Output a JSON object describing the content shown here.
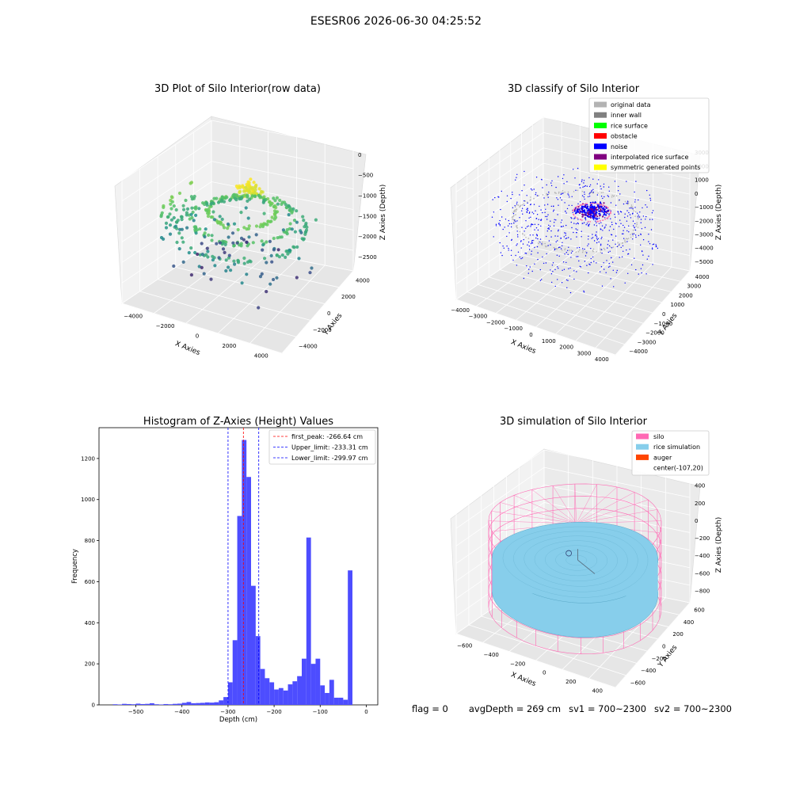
{
  "figure_title": "ESESR06 2026-06-30 04:25:52",
  "status": {
    "flag": "flag = 0",
    "avg_depth": "avgDepth = 269 cm",
    "sv1": "sv1 = 700~2300",
    "sv2": "sv2 = 700~2300"
  },
  "colors": {
    "original_data": "#b3b3b3",
    "inner_wall": "#808080",
    "rice_surface": "#00ff00",
    "obstacle": "#ff0000",
    "noise": "#0000ff",
    "interpolated_rice_surface": "#800080",
    "symmetric_generated_points": "#ffff00",
    "silo": "#ff69b4",
    "rice_simulation": "#87ceeb",
    "auger": "#ff4500",
    "hist_bar": "#4d4dff"
  },
  "chart_data": [
    {
      "type": "scatter",
      "projection": "3d",
      "title": "3D Plot of Silo Interior(row data)",
      "xlabel": "X Axies",
      "ylabel": "Y Axies",
      "zlabel": "Z Axies (Depth)",
      "xticks": [
        "−4000",
        "−2000",
        "0",
        "2000",
        "4000"
      ],
      "yticks": [
        "−4000",
        "−2000",
        "0",
        "2000",
        "4000"
      ],
      "zticks": [
        "0",
        "−500",
        "−1000",
        "−1500",
        "−2000",
        "−2500"
      ],
      "xlim": [
        -4500,
        4500
      ],
      "ylim": [
        -4500,
        4500
      ],
      "zlim": [
        -2800,
        0
      ],
      "colormap": "viridis"
    },
    {
      "type": "scatter",
      "projection": "3d",
      "title": "3D classify of Silo Interior",
      "xlabel": "X Axies",
      "ylabel": "Y Axies",
      "zlabel": "Z Axies (Depth)",
      "xticks": [
        "−4000",
        "−3000",
        "−2000",
        "−1000",
        "0",
        "1000",
        "2000",
        "3000",
        "4000"
      ],
      "yticks": [
        "−4000",
        "−3000",
        "−2000",
        "−1000",
        "0",
        "1000",
        "2000",
        "3000",
        "4000"
      ],
      "zticks": [
        "3000",
        "2000",
        "1000",
        "0",
        "−1000",
        "−2000",
        "−3000",
        "−4000",
        "−5000"
      ],
      "xlim": [
        -4000,
        4000
      ],
      "ylim": [
        -4000,
        4000
      ],
      "zlim": [
        -5000,
        3000
      ],
      "legend_position": "top-right",
      "legend": [
        "original data",
        "inner wall",
        "rice surface",
        "obstacle",
        "noise",
        "interpolated rice surface",
        "symmetric generated points"
      ]
    },
    {
      "type": "bar",
      "title": "Histogram of Z-Axies (Height) Values",
      "xlabel": "Depth (cm)",
      "ylabel": "Frequency",
      "xlim": [
        -580,
        25
      ],
      "ylim": [
        0,
        1350
      ],
      "xticks": [
        -500,
        -400,
        -300,
        -200,
        -100,
        0
      ],
      "yticks": [
        0,
        200,
        400,
        600,
        800,
        1000,
        1200
      ],
      "bin_width": 10,
      "bins": [
        {
          "x": -550,
          "y": 3
        },
        {
          "x": -540,
          "y": 2
        },
        {
          "x": -530,
          "y": 5
        },
        {
          "x": -520,
          "y": 4
        },
        {
          "x": -510,
          "y": 3
        },
        {
          "x": -500,
          "y": 6
        },
        {
          "x": -490,
          "y": 4
        },
        {
          "x": -480,
          "y": 5
        },
        {
          "x": -470,
          "y": 8
        },
        {
          "x": -460,
          "y": 3
        },
        {
          "x": -450,
          "y": 2
        },
        {
          "x": -440,
          "y": 4
        },
        {
          "x": -430,
          "y": 3
        },
        {
          "x": -420,
          "y": 5
        },
        {
          "x": -410,
          "y": 6
        },
        {
          "x": -400,
          "y": 10
        },
        {
          "x": -390,
          "y": 14
        },
        {
          "x": -380,
          "y": 8
        },
        {
          "x": -370,
          "y": 9
        },
        {
          "x": -360,
          "y": 10
        },
        {
          "x": -350,
          "y": 12
        },
        {
          "x": -340,
          "y": 11
        },
        {
          "x": -330,
          "y": 13
        },
        {
          "x": -320,
          "y": 22
        },
        {
          "x": -310,
          "y": 38
        },
        {
          "x": -300,
          "y": 110
        },
        {
          "x": -290,
          "y": 315
        },
        {
          "x": -280,
          "y": 920
        },
        {
          "x": -270,
          "y": 1290
        },
        {
          "x": -260,
          "y": 1110
        },
        {
          "x": -250,
          "y": 580
        },
        {
          "x": -240,
          "y": 335
        },
        {
          "x": -230,
          "y": 175
        },
        {
          "x": -220,
          "y": 130
        },
        {
          "x": -210,
          "y": 110
        },
        {
          "x": -200,
          "y": 75
        },
        {
          "x": -190,
          "y": 82
        },
        {
          "x": -180,
          "y": 70
        },
        {
          "x": -170,
          "y": 100
        },
        {
          "x": -160,
          "y": 115
        },
        {
          "x": -150,
          "y": 140
        },
        {
          "x": -140,
          "y": 225
        },
        {
          "x": -130,
          "y": 815
        },
        {
          "x": -120,
          "y": 200
        },
        {
          "x": -110,
          "y": 225
        },
        {
          "x": -100,
          "y": 95
        },
        {
          "x": -90,
          "y": 58
        },
        {
          "x": -80,
          "y": 122
        },
        {
          "x": -70,
          "y": 35
        },
        {
          "x": -60,
          "y": 35
        },
        {
          "x": -50,
          "y": 25
        },
        {
          "x": -40,
          "y": 655
        }
      ],
      "vlines": [
        {
          "x": -266.64,
          "color": "#ff0000",
          "label": "first_peak: -266.64 cm"
        },
        {
          "x": -233.31,
          "color": "#0000ff",
          "label": "Upper_limit: -233.31 cm"
        },
        {
          "x": -299.97,
          "color": "#0000ff",
          "label": "Lower_limit: -299.97 cm"
        }
      ],
      "legend_position": "top-right"
    },
    {
      "type": "surface",
      "projection": "3d",
      "title": "3D simulation of Silo Interior",
      "xlabel": "X Axies",
      "ylabel": "Y Axies",
      "zlabel": "Z Axies (Depth)",
      "xticks": [
        "−600",
        "−400",
        "−200",
        "0",
        "200",
        "400"
      ],
      "yticks": [
        "−600",
        "−400",
        "−200",
        "0",
        "200",
        "400",
        "600"
      ],
      "zticks": [
        "400",
        "200",
        "0",
        "−200",
        "−400",
        "−600",
        "−800"
      ],
      "xlim": [
        -700,
        500
      ],
      "ylim": [
        -700,
        700
      ],
      "zlim": [
        -900,
        450
      ],
      "legend_position": "top-right",
      "legend": [
        "silo",
        "rice simulation",
        "auger",
        "center(-107,20)"
      ]
    }
  ]
}
